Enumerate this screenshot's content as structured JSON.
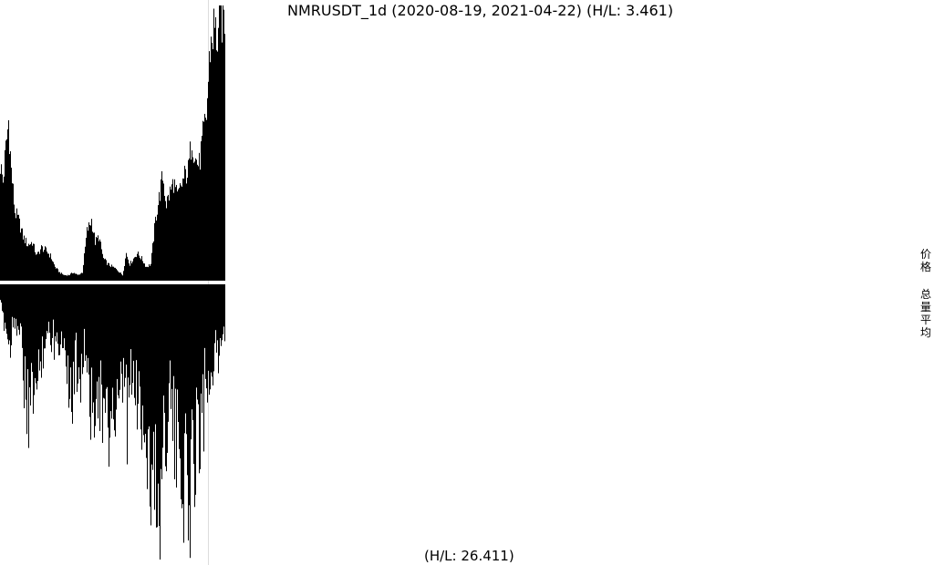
{
  "title": "NMRUSDT_1d (2020-08-19, 2021-04-22) (H/L: 3.461)",
  "volume_label": "(H/L: 26.411)",
  "legend": {
    "price": "价格",
    "volume": "总量平均"
  },
  "colors": {
    "bars": "#000000",
    "background": "#ffffff",
    "marker_line": "#dddddd"
  },
  "chart_data": [
    {
      "type": "bar",
      "name": "price",
      "x_start": "2020-08-19",
      "x_end": "2021-04-22",
      "ylim": [
        0,
        1
      ],
      "note_scale": "relative to period high",
      "keypoints": [
        [
          0,
          0.42
        ],
        [
          3,
          0.36
        ],
        [
          6,
          0.48
        ],
        [
          9,
          0.58
        ],
        [
          12,
          0.4
        ],
        [
          16,
          0.25
        ],
        [
          20,
          0.22
        ],
        [
          25,
          0.16
        ],
        [
          30,
          0.13
        ],
        [
          35,
          0.14
        ],
        [
          40,
          0.09
        ],
        [
          45,
          0.12
        ],
        [
          50,
          0.11
        ],
        [
          55,
          0.09
        ],
        [
          60,
          0.05
        ],
        [
          65,
          0.03
        ],
        [
          70,
          0.02
        ],
        [
          75,
          0.02
        ],
        [
          80,
          0.03
        ],
        [
          85,
          0.02
        ],
        [
          90,
          0.03
        ],
        [
          95,
          0.18
        ],
        [
          100,
          0.22
        ],
        [
          104,
          0.14
        ],
        [
          108,
          0.16
        ],
        [
          113,
          0.08
        ],
        [
          118,
          0.06
        ],
        [
          123,
          0.05
        ],
        [
          128,
          0.04
        ],
        [
          134,
          0.02
        ],
        [
          138,
          0.1
        ],
        [
          142,
          0.06
        ],
        [
          146,
          0.08
        ],
        [
          150,
          0.1
        ],
        [
          155,
          0.08
        ],
        [
          160,
          0.05
        ],
        [
          165,
          0.06
        ],
        [
          170,
          0.22
        ],
        [
          174,
          0.3
        ],
        [
          178,
          0.38
        ],
        [
          182,
          0.28
        ],
        [
          186,
          0.32
        ],
        [
          190,
          0.36
        ],
        [
          194,
          0.3
        ],
        [
          198,
          0.34
        ],
        [
          202,
          0.38
        ],
        [
          206,
          0.4
        ],
        [
          210,
          0.52
        ],
        [
          214,
          0.44
        ],
        [
          218,
          0.42
        ],
        [
          222,
          0.52
        ],
        [
          226,
          0.6
        ],
        [
          230,
          0.85
        ],
        [
          234,
          0.92
        ],
        [
          238,
          0.88
        ],
        [
          242,
          0.96
        ],
        [
          246,
          0.97
        ]
      ]
    },
    {
      "type": "bar",
      "name": "volume",
      "x_start": "2020-08-19",
      "x_end": "2021-04-22",
      "ylim": [
        0,
        1
      ],
      "note_scale": "relative to period high, drawn downward",
      "keypoints": [
        [
          0,
          0.1
        ],
        [
          5,
          0.15
        ],
        [
          10,
          0.25
        ],
        [
          15,
          0.12
        ],
        [
          20,
          0.18
        ],
        [
          25,
          0.3
        ],
        [
          32,
          0.65
        ],
        [
          35,
          0.3
        ],
        [
          40,
          0.45
        ],
        [
          45,
          0.28
        ],
        [
          50,
          0.2
        ],
        [
          55,
          0.22
        ],
        [
          60,
          0.16
        ],
        [
          65,
          0.25
        ],
        [
          70,
          0.2
        ],
        [
          78,
          0.48
        ],
        [
          82,
          0.3
        ],
        [
          88,
          0.35
        ],
        [
          92,
          0.25
        ],
        [
          98,
          0.4
        ],
        [
          101,
          0.6
        ],
        [
          105,
          0.35
        ],
        [
          110,
          0.48
        ],
        [
          115,
          0.55
        ],
        [
          118,
          0.65
        ],
        [
          122,
          0.45
        ],
        [
          126,
          0.58
        ],
        [
          130,
          0.5
        ],
        [
          135,
          0.4
        ],
        [
          140,
          0.45
        ],
        [
          145,
          0.38
        ],
        [
          150,
          0.42
        ],
        [
          155,
          0.5
        ],
        [
          160,
          0.6
        ],
        [
          165,
          0.75
        ],
        [
          168,
          0.8
        ],
        [
          171,
          0.75
        ],
        [
          175,
          0.98
        ],
        [
          178,
          0.62
        ],
        [
          182,
          0.55
        ],
        [
          186,
          0.4
        ],
        [
          190,
          0.6
        ],
        [
          194,
          0.68
        ],
        [
          198,
          0.7
        ],
        [
          202,
          0.78
        ],
        [
          206,
          0.82
        ],
        [
          210,
          0.75
        ],
        [
          214,
          0.62
        ],
        [
          218,
          0.55
        ],
        [
          222,
          0.4
        ],
        [
          226,
          0.35
        ],
        [
          230,
          0.32
        ],
        [
          234,
          0.3
        ],
        [
          238,
          0.25
        ],
        [
          242,
          0.22
        ],
        [
          246,
          0.2
        ]
      ]
    }
  ]
}
